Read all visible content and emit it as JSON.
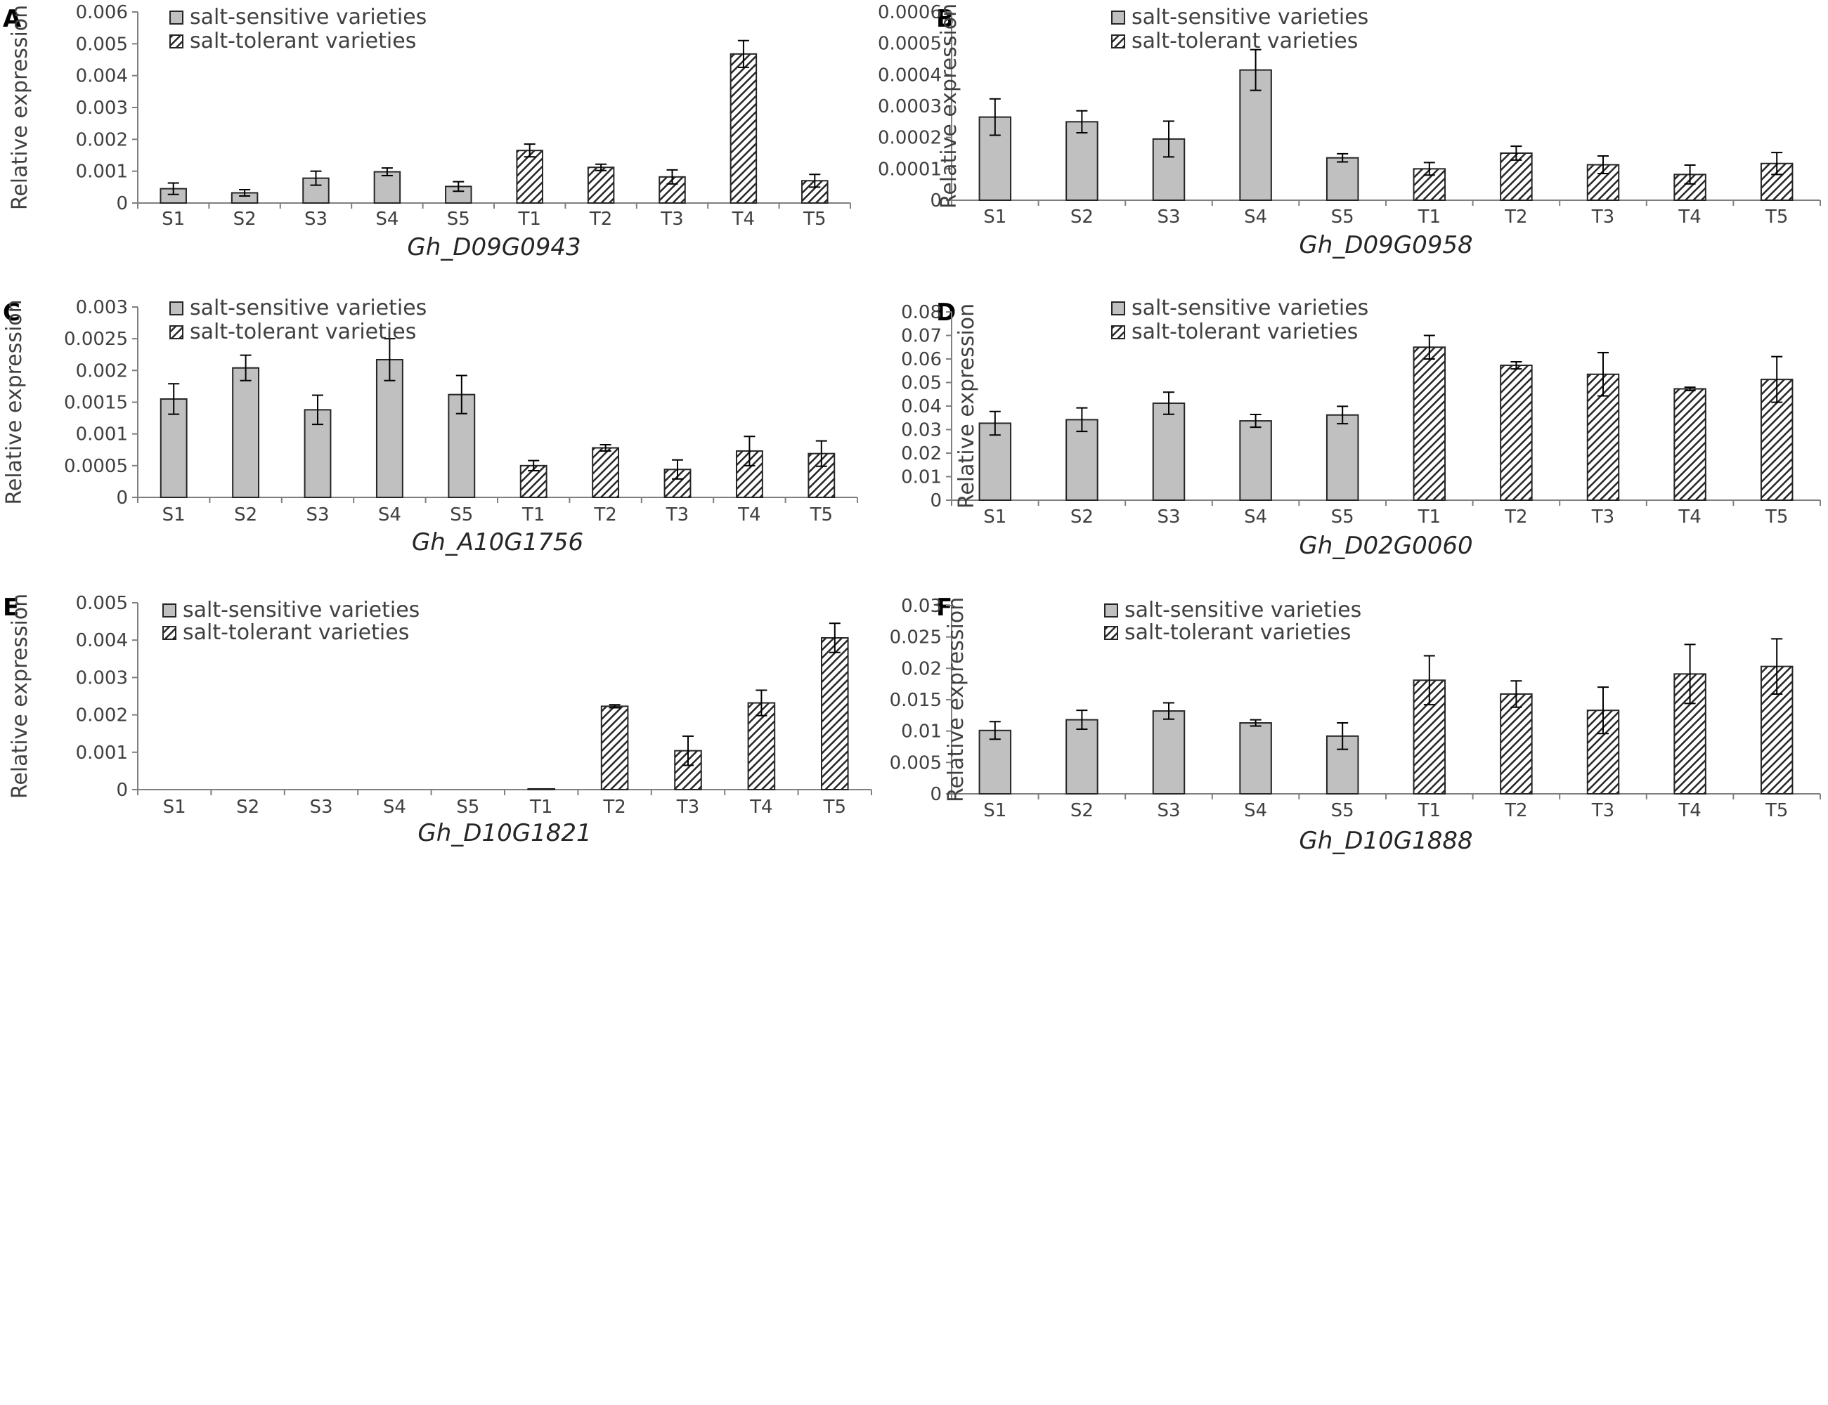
{
  "figure": {
    "legend_sensitive": "salt-sensitive varieties",
    "legend_tolerant": "salt-tolerant varieties",
    "colors": {
      "sensitive_fill": "#c0c0c0",
      "bar_stroke": "#262626",
      "hatch": "#262626",
      "axis": "#7f7f7f",
      "text": "#404040"
    }
  },
  "chart_data": [
    {
      "panel": "A",
      "type": "bar",
      "gene": "Gh_D09G0943",
      "ylabel": "Relative expression",
      "categories": [
        "S1",
        "S2",
        "S3",
        "S4",
        "S5",
        "T1",
        "T2",
        "T3",
        "T4",
        "T5"
      ],
      "ylim": [
        0,
        0.006
      ],
      "yticks": [
        "0",
        "0.001",
        "0.002",
        "0.003",
        "0.004",
        "0.005",
        "0.006"
      ],
      "values": [
        0.00045,
        0.00032,
        0.00078,
        0.00098,
        0.00052,
        0.00165,
        0.00112,
        0.00082,
        0.00468,
        0.0007
      ],
      "errors": [
        0.00018,
        0.0001,
        0.00022,
        0.00012,
        0.00015,
        0.0002,
        0.0001,
        0.00022,
        0.00042,
        0.0002
      ],
      "series_of": [
        "sensitive",
        "sensitive",
        "sensitive",
        "sensitive",
        "sensitive",
        "tolerant",
        "tolerant",
        "tolerant",
        "tolerant",
        "tolerant"
      ]
    },
    {
      "panel": "B",
      "type": "bar",
      "gene": "Gh_D09G0958",
      "ylabel": "Relative expression",
      "categories": [
        "S1",
        "S2",
        "S3",
        "S4",
        "S5",
        "T1",
        "T2",
        "T3",
        "T4",
        "T5"
      ],
      "ylim": [
        0,
        0.0006
      ],
      "yticks": [
        "0",
        "0.0001",
        "0.0002",
        "0.0003",
        "0.0004",
        "0.0005",
        "0.0006"
      ],
      "values": [
        0.000265,
        0.00025,
        0.000195,
        0.000415,
        0.000135,
        0.0001,
        0.00015,
        0.000113,
        8.2e-05,
        0.000117
      ],
      "errors": [
        5.8e-05,
        3.5e-05,
        5.7e-05,
        6.5e-05,
        1.3e-05,
        2e-05,
        2.2e-05,
        2.8e-05,
        3e-05,
        3.5e-05
      ],
      "series_of": [
        "sensitive",
        "sensitive",
        "sensitive",
        "sensitive",
        "sensitive",
        "tolerant",
        "tolerant",
        "tolerant",
        "tolerant",
        "tolerant"
      ]
    },
    {
      "panel": "C",
      "type": "bar",
      "gene": "Gh_A10G1756",
      "ylabel": "Relative expression",
      "categories": [
        "S1",
        "S2",
        "S3",
        "S4",
        "S5",
        "T1",
        "T2",
        "T3",
        "T4",
        "T5"
      ],
      "ylim": [
        0,
        0.003
      ],
      "yticks": [
        "0",
        "0.0005",
        "0.001",
        "0.0015",
        "0.002",
        "0.0025",
        "0.003"
      ],
      "values": [
        0.00155,
        0.00204,
        0.00138,
        0.00217,
        0.00162,
        0.0005,
        0.00078,
        0.00044,
        0.00073,
        0.00069
      ],
      "errors": [
        0.00024,
        0.0002,
        0.00023,
        0.00033,
        0.0003,
        8e-05,
        5e-05,
        0.00015,
        0.00023,
        0.0002
      ],
      "series_of": [
        "sensitive",
        "sensitive",
        "sensitive",
        "sensitive",
        "sensitive",
        "tolerant",
        "tolerant",
        "tolerant",
        "tolerant",
        "tolerant"
      ]
    },
    {
      "panel": "D",
      "type": "bar",
      "gene": "Gh_D02G0060",
      "ylabel": "Relative expression",
      "categories": [
        "S1",
        "S2",
        "S3",
        "S4",
        "S5",
        "T1",
        "T2",
        "T3",
        "T4",
        "T5"
      ],
      "ylim": [
        0,
        0.08
      ],
      "yticks": [
        "0",
        "0.01",
        "0.02",
        "0.03",
        "0.04",
        "0.05",
        "0.06",
        "0.07",
        "0.08"
      ],
      "values": [
        0.0327,
        0.0342,
        0.0412,
        0.0337,
        0.0362,
        0.065,
        0.0573,
        0.0535,
        0.0473,
        0.0513
      ],
      "errors": [
        0.005,
        0.005,
        0.0047,
        0.0027,
        0.0037,
        0.005,
        0.0015,
        0.0092,
        0.0007,
        0.0097
      ],
      "series_of": [
        "sensitive",
        "sensitive",
        "sensitive",
        "sensitive",
        "sensitive",
        "tolerant",
        "tolerant",
        "tolerant",
        "tolerant",
        "tolerant"
      ]
    },
    {
      "panel": "E",
      "type": "bar",
      "gene": "Gh_D10G1821",
      "ylabel": "Relative expression",
      "categories": [
        "S1",
        "S2",
        "S3",
        "S4",
        "S5",
        "T1",
        "T2",
        "T3",
        "T4",
        "T5"
      ],
      "ylim": [
        0,
        0.005
      ],
      "yticks": [
        "0",
        "0.001",
        "0.002",
        "0.003",
        "0.004",
        "0.005"
      ],
      "values": [
        0,
        0,
        0,
        0,
        0,
        2e-05,
        0.00223,
        0.00104,
        0.00232,
        0.00406
      ],
      "errors": [
        0,
        0,
        0,
        0,
        0,
        0,
        4e-05,
        0.00039,
        0.00034,
        0.00039
      ],
      "series_of": [
        "sensitive",
        "sensitive",
        "sensitive",
        "sensitive",
        "sensitive",
        "tolerant",
        "tolerant",
        "tolerant",
        "tolerant",
        "tolerant"
      ]
    },
    {
      "panel": "F",
      "type": "bar",
      "gene": "Gh_D10G1888",
      "ylabel": "Relative expression",
      "categories": [
        "S1",
        "S2",
        "S3",
        "S4",
        "S5",
        "T1",
        "T2",
        "T3",
        "T4",
        "T5"
      ],
      "ylim": [
        0,
        0.03
      ],
      "yticks": [
        "0",
        "0.005",
        "0.01",
        "0.015",
        "0.02",
        "0.025",
        "0.03"
      ],
      "values": [
        0.0101,
        0.0118,
        0.0132,
        0.0113,
        0.0092,
        0.0181,
        0.0159,
        0.0133,
        0.0191,
        0.0203
      ],
      "errors": [
        0.0014,
        0.0015,
        0.0013,
        0.0005,
        0.0021,
        0.0039,
        0.0021,
        0.0037,
        0.0047,
        0.0044
      ],
      "series_of": [
        "sensitive",
        "sensitive",
        "sensitive",
        "sensitive",
        "sensitive",
        "tolerant",
        "tolerant",
        "tolerant",
        "tolerant",
        "tolerant"
      ]
    }
  ]
}
